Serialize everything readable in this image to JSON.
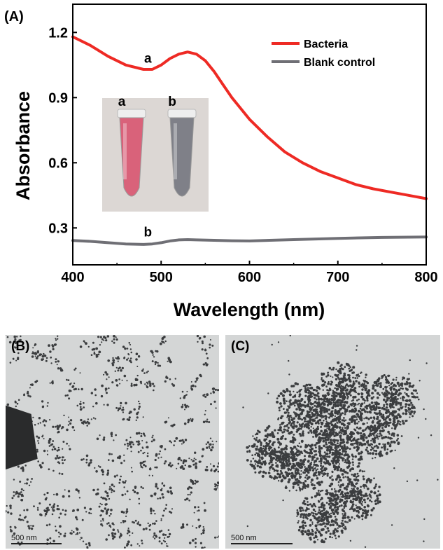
{
  "panels": {
    "A": "(A)",
    "B": "(B)",
    "C": "(C)"
  },
  "chart_data": {
    "type": "line",
    "xlabel": "Wavelength (nm)",
    "ylabel": "Absorbance",
    "xlim": [
      400,
      800
    ],
    "ylim": [
      0.13,
      1.33
    ],
    "xticks": [
      400,
      500,
      600,
      700,
      800
    ],
    "yticks": [
      0.3,
      0.6,
      0.9,
      1.2
    ],
    "grid": false,
    "legend_position": "top-right",
    "series": [
      {
        "name": "Bacteria",
        "color": "#ee2a24",
        "x": [
          400,
          420,
          440,
          460,
          480,
          490,
          500,
          510,
          520,
          530,
          540,
          550,
          560,
          570,
          580,
          600,
          620,
          640,
          660,
          680,
          700,
          720,
          740,
          760,
          780,
          800
        ],
        "y": [
          1.18,
          1.14,
          1.09,
          1.05,
          1.03,
          1.03,
          1.05,
          1.08,
          1.1,
          1.11,
          1.1,
          1.07,
          1.02,
          0.96,
          0.9,
          0.8,
          0.72,
          0.65,
          0.6,
          0.56,
          0.53,
          0.5,
          0.48,
          0.465,
          0.45,
          0.435
        ]
      },
      {
        "name": "Blank control",
        "color": "#6f6f75",
        "x": [
          400,
          420,
          440,
          460,
          480,
          490,
          500,
          510,
          520,
          530,
          540,
          560,
          580,
          600,
          650,
          700,
          750,
          800
        ],
        "y": [
          0.242,
          0.238,
          0.232,
          0.226,
          0.224,
          0.226,
          0.232,
          0.24,
          0.245,
          0.246,
          0.245,
          0.243,
          0.241,
          0.24,
          0.246,
          0.252,
          0.256,
          0.258
        ]
      }
    ],
    "annotations": [
      {
        "text": "a",
        "x": 485,
        "y": 1.06
      },
      {
        "text": "b",
        "x": 485,
        "y": 0.26
      }
    ],
    "inset": {
      "tube_labels": [
        "a",
        "b"
      ],
      "tube_colors": [
        "#d9627a",
        "#7f8088"
      ]
    }
  },
  "tem": {
    "B": {
      "scale_label": "500 nm"
    },
    "C": {
      "scale_label": "500 nm"
    }
  }
}
